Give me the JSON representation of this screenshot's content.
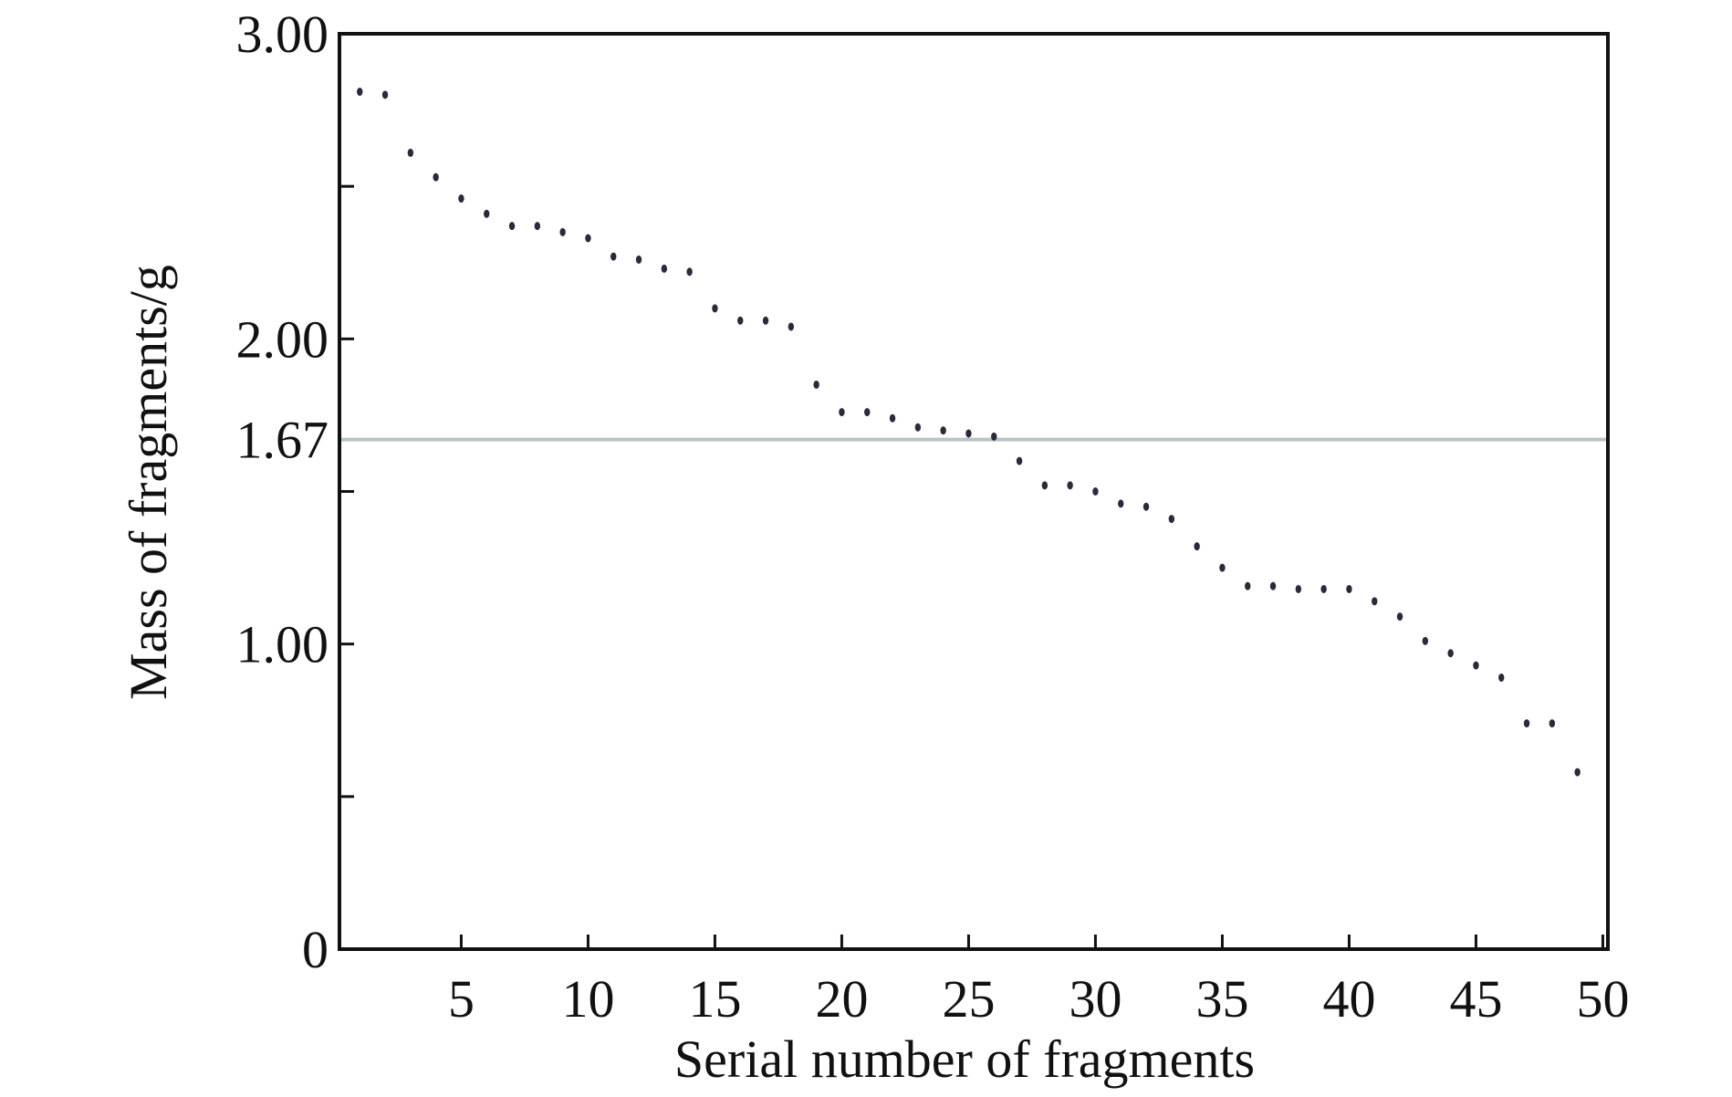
{
  "chart_data": {
    "type": "scatter",
    "title": "",
    "xlabel": "Serial number of fragments",
    "ylabel": "Mass of fragments/g",
    "xlim": [
      0.2,
      50.2
    ],
    "ylim": [
      0,
      3.0
    ],
    "x_ticks": [
      5,
      10,
      15,
      20,
      25,
      30,
      35,
      40,
      45,
      50
    ],
    "y_ticks": [
      {
        "value": 0,
        "label": "0"
      },
      {
        "value": 0.5,
        "label": ""
      },
      {
        "value": 1.0,
        "label": "1.00"
      },
      {
        "value": 1.5,
        "label": ""
      },
      {
        "value": 1.67,
        "label": "1.67"
      },
      {
        "value": 2.0,
        "label": "2.00"
      },
      {
        "value": 2.5,
        "label": ""
      },
      {
        "value": 3.0,
        "label": "3.00"
      }
    ],
    "reference_line": {
      "y": 1.67,
      "color": "#b8c4c4"
    },
    "grid": false,
    "marker_color": "#2a2a3a",
    "series": [
      {
        "x": [
          1,
          2,
          3,
          4,
          5,
          6,
          7,
          8,
          9,
          10,
          11,
          12,
          13,
          14,
          15,
          16,
          17,
          18,
          19,
          20,
          21,
          22,
          23,
          24,
          25,
          26,
          27,
          28,
          29,
          30,
          31,
          32,
          33,
          34,
          35,
          36,
          37,
          38,
          39,
          40,
          41,
          42,
          43,
          44,
          45,
          46,
          47,
          48,
          49
        ],
        "y": [
          2.81,
          2.8,
          2.61,
          2.53,
          2.46,
          2.41,
          2.37,
          2.37,
          2.35,
          2.33,
          2.27,
          2.26,
          2.23,
          2.22,
          2.1,
          2.06,
          2.06,
          2.04,
          1.85,
          1.76,
          1.76,
          1.74,
          1.71,
          1.7,
          1.69,
          1.68,
          1.6,
          1.52,
          1.52,
          1.5,
          1.46,
          1.45,
          1.41,
          1.32,
          1.25,
          1.19,
          1.19,
          1.18,
          1.18,
          1.18,
          1.14,
          1.09,
          1.01,
          0.97,
          0.93,
          0.89,
          0.74,
          0.74,
          0.58
        ]
      }
    ]
  }
}
